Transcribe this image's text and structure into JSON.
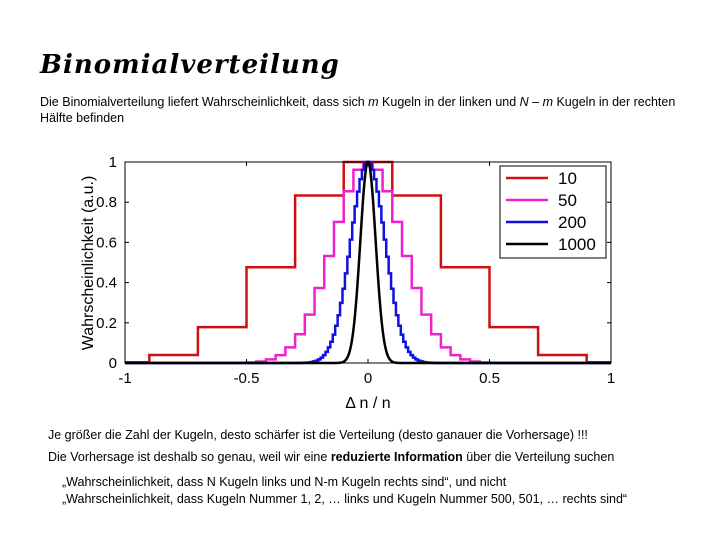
{
  "title": "Binomialverteilung",
  "intro": {
    "part1": "Die Binomialverteilung liefert Wahrscheinlichkeit, dass sich ",
    "m1": "m",
    "part2": " Kugeln in der linken und ",
    "nm": "N – m",
    "part3": " Kugeln in der rechten Hälfte befinden"
  },
  "chart_data": {
    "type": "line",
    "title": "",
    "xlabel": "Δ n / n",
    "ylabel": "Wahrscheinlichkeit (a.u.)",
    "xlim": [
      -1,
      1
    ],
    "ylim": [
      0,
      1
    ],
    "xticks": [
      "-1",
      "-0.5",
      "0",
      "0.5",
      "1"
    ],
    "yticks": [
      "0",
      "0.2",
      "0.4",
      "0.6",
      "0.8",
      "1"
    ],
    "grid": false,
    "legend_position": "top-right",
    "series": [
      {
        "name": "10",
        "color": "#cc1111",
        "n": 10
      },
      {
        "name": "50",
        "color": "#ee22cc",
        "n": 50
      },
      {
        "name": "200",
        "color": "#1111dd",
        "n": 200
      },
      {
        "name": "1000",
        "color": "#000000",
        "n": 1000
      }
    ]
  },
  "text": {
    "line1": "Je größer die Zahl der Kugeln, desto schärfer ist die Verteilung (desto ganauer die Vorhersage) !!!",
    "line2_a": "Die Vorhersage ist deshalb so genau, weil wir eine ",
    "line2_b": "reduzierte Information",
    "line2_c": " über die Verteilung suchen",
    "quote1": "„Wahrscheinlichkeit, dass N Kugeln links und N-m Kugeln rechts sind“, und nicht",
    "quote2": "„Wahrscheinlichkeit, dass Kugeln Nummer 1, 2, … links und Kugeln Nummer 500, 501, … rechts sind“"
  }
}
